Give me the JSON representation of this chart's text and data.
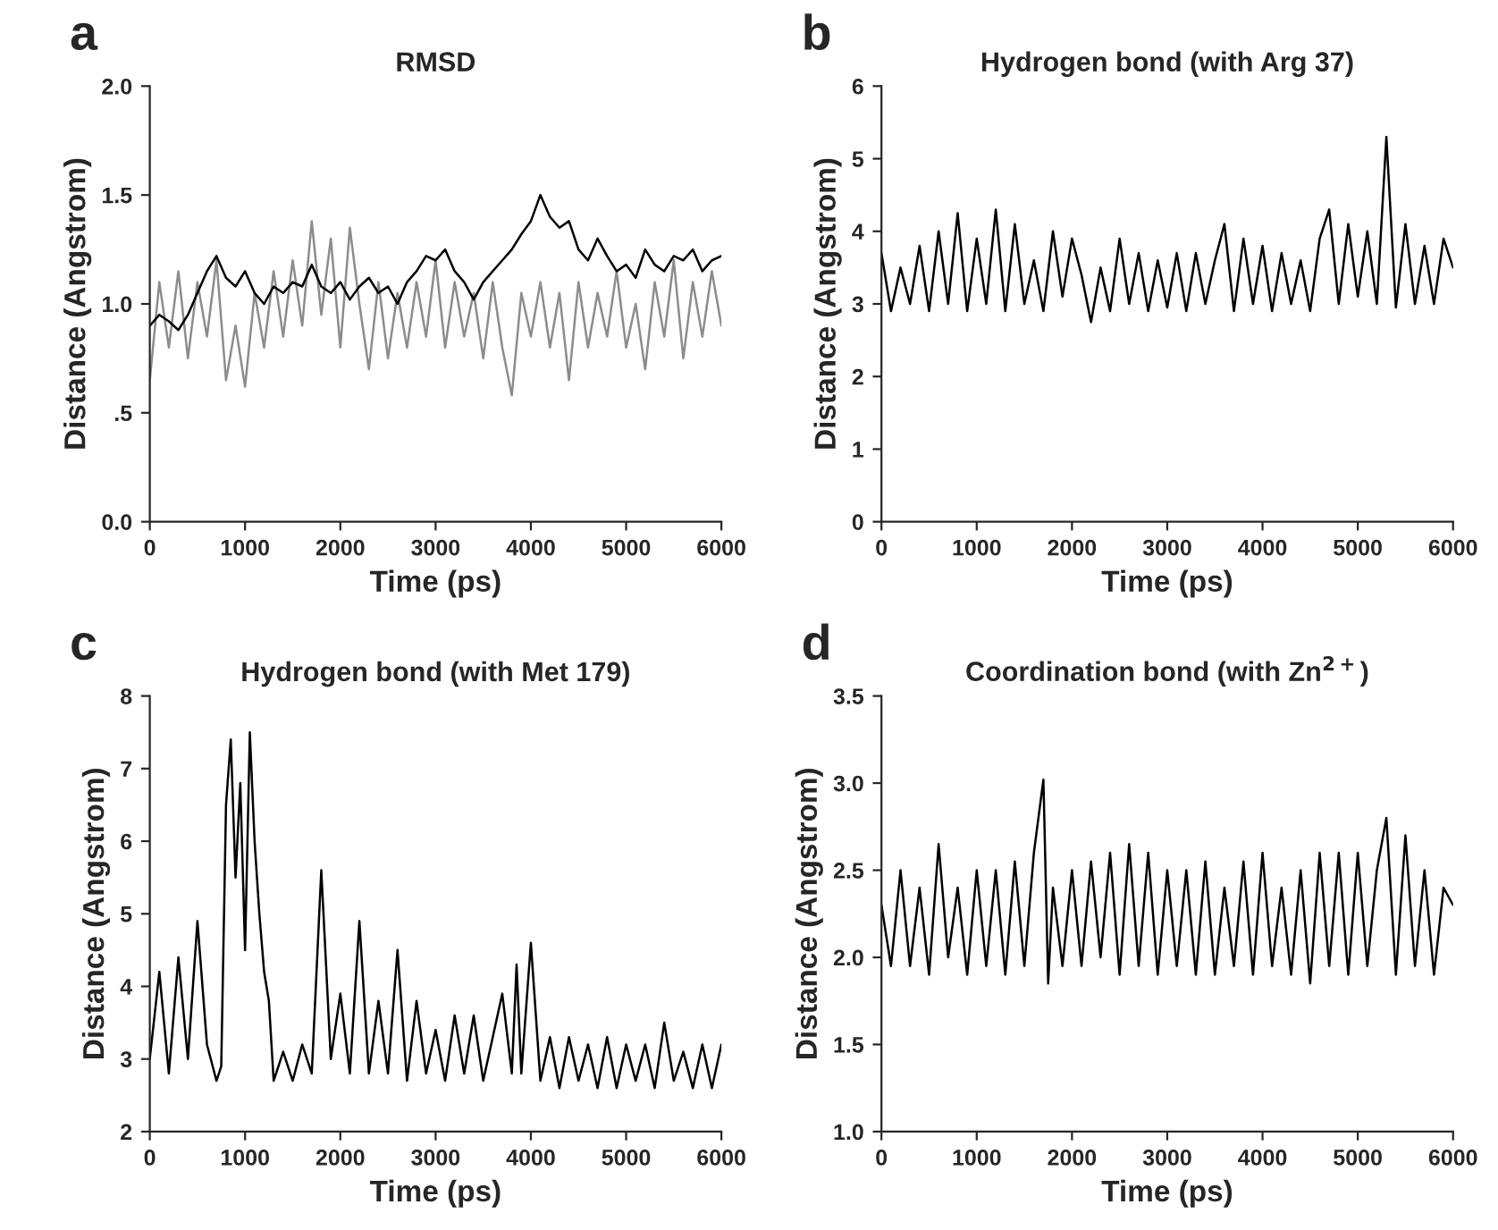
{
  "chart_data": [
    {
      "type": "line",
      "title": "RMSD",
      "xlabel": "Time (ps)",
      "ylabel": "Distance (Angstrom)",
      "annotations": [
        "a"
      ],
      "xlim": [
        0,
        6000
      ],
      "xticks": [
        0,
        1000,
        2000,
        3000,
        4000,
        5000,
        6000
      ],
      "ylim": [
        0,
        2
      ],
      "yticks": [
        {
          "value": 0,
          "label": "0.0"
        },
        {
          "value": 0.5,
          "label": ".5"
        },
        {
          "value": 1,
          "label": "1.0"
        },
        {
          "value": 1.5,
          "label": "1.5"
        },
        {
          "value": 2,
          "label": "2.0"
        }
      ],
      "grid": false,
      "legend": false,
      "x": [
        0,
        100,
        200,
        300,
        400,
        500,
        600,
        700,
        800,
        900,
        1000,
        1100,
        1200,
        1300,
        1400,
        1500,
        1600,
        1700,
        1800,
        1900,
        2000,
        2100,
        2200,
        2300,
        2400,
        2500,
        2600,
        2700,
        2800,
        2900,
        3000,
        3100,
        3200,
        3300,
        3400,
        3500,
        3600,
        3700,
        3800,
        3900,
        4000,
        4100,
        4200,
        4300,
        4400,
        4500,
        4600,
        4700,
        4800,
        4900,
        5000,
        5100,
        5200,
        5300,
        5400,
        5500,
        5600,
        5700,
        5800,
        5900,
        6000
      ],
      "series": [
        {
          "color": "#8c8c8c",
          "values": [
            0.65,
            1.1,
            0.8,
            1.15,
            0.75,
            1.1,
            0.85,
            1.2,
            0.65,
            0.9,
            0.62,
            1.05,
            0.8,
            1.15,
            0.85,
            1.2,
            0.9,
            1.38,
            0.95,
            1.3,
            0.8,
            1.35,
            1.0,
            0.7,
            1.1,
            0.75,
            1.05,
            0.8,
            1.1,
            0.85,
            1.2,
            0.8,
            1.1,
            0.85,
            1.05,
            0.75,
            1.1,
            0.8,
            0.58,
            1.05,
            0.85,
            1.1,
            0.8,
            1.05,
            0.65,
            1.1,
            0.8,
            1.05,
            0.85,
            1.15,
            0.8,
            1.0,
            0.7,
            1.1,
            0.85,
            1.2,
            0.75,
            1.1,
            0.85,
            1.15,
            0.9
          ]
        },
        {
          "color": "#000000",
          "values": [
            0.9,
            0.95,
            0.92,
            0.88,
            0.95,
            1.05,
            1.15,
            1.22,
            1.12,
            1.08,
            1.15,
            1.05,
            1.0,
            1.08,
            1.05,
            1.1,
            1.08,
            1.18,
            1.08,
            1.05,
            1.1,
            1.02,
            1.08,
            1.12,
            1.05,
            1.08,
            1.0,
            1.1,
            1.15,
            1.22,
            1.2,
            1.25,
            1.15,
            1.1,
            1.02,
            1.1,
            1.15,
            1.2,
            1.25,
            1.32,
            1.38,
            1.5,
            1.4,
            1.35,
            1.38,
            1.25,
            1.2,
            1.3,
            1.22,
            1.15,
            1.18,
            1.12,
            1.25,
            1.18,
            1.15,
            1.22,
            1.2,
            1.25,
            1.15,
            1.2,
            1.22
          ]
        }
      ]
    },
    {
      "type": "line",
      "title": "Hydrogen bond (with Arg 37)",
      "xlabel": "Time (ps)",
      "ylabel": "Distance (Angstrom)",
      "annotations": [
        "b"
      ],
      "xlim": [
        0,
        6000
      ],
      "xticks": [
        0,
        1000,
        2000,
        3000,
        4000,
        5000,
        6000
      ],
      "ylim": [
        0,
        6
      ],
      "yticks": [
        0,
        1,
        2,
        3,
        4,
        5,
        6
      ],
      "grid": false,
      "legend": false,
      "x": [
        0,
        100,
        200,
        300,
        400,
        500,
        600,
        700,
        800,
        900,
        1000,
        1100,
        1200,
        1300,
        1400,
        1500,
        1600,
        1700,
        1800,
        1900,
        2000,
        2100,
        2200,
        2300,
        2400,
        2500,
        2600,
        2700,
        2800,
        2900,
        3000,
        3100,
        3200,
        3300,
        3400,
        3500,
        3600,
        3700,
        3800,
        3900,
        4000,
        4100,
        4200,
        4300,
        4400,
        4500,
        4600,
        4700,
        4800,
        4900,
        5000,
        5100,
        5200,
        5300,
        5400,
        5500,
        5600,
        5700,
        5800,
        5900,
        6000
      ],
      "series": [
        {
          "color": "#000000",
          "values": [
            3.7,
            2.9,
            3.5,
            3.0,
            3.8,
            2.9,
            4.0,
            3.0,
            4.25,
            2.9,
            3.9,
            3.0,
            4.3,
            2.9,
            4.1,
            3.0,
            3.6,
            2.9,
            4.0,
            3.1,
            3.9,
            3.4,
            2.75,
            3.5,
            2.9,
            3.9,
            3.0,
            3.7,
            2.9,
            3.6,
            2.95,
            3.7,
            2.9,
            3.7,
            3.0,
            3.6,
            4.1,
            2.9,
            3.9,
            3.0,
            3.8,
            2.9,
            3.7,
            3.0,
            3.6,
            2.9,
            3.9,
            4.3,
            3.0,
            4.1,
            3.1,
            4.0,
            3.0,
            5.3,
            2.95,
            4.1,
            3.0,
            3.8,
            3.0,
            3.9,
            3.5
          ]
        }
      ]
    },
    {
      "type": "line",
      "title": "Hydrogen bond (with Met 179)",
      "xlabel": "Time (ps)",
      "ylabel": "Distance (Angstrom)",
      "annotations": [
        "c"
      ],
      "xlim": [
        0,
        6000
      ],
      "xticks": [
        0,
        1000,
        2000,
        3000,
        4000,
        5000,
        6000
      ],
      "ylim": [
        2,
        8
      ],
      "yticks": [
        2,
        3,
        4,
        5,
        6,
        7,
        8
      ],
      "grid": false,
      "legend": false,
      "x": [
        0,
        100,
        200,
        300,
        400,
        500,
        600,
        700,
        750,
        800,
        850,
        900,
        950,
        1000,
        1050,
        1100,
        1150,
        1200,
        1250,
        1300,
        1400,
        1500,
        1600,
        1700,
        1800,
        1900,
        2000,
        2100,
        2200,
        2300,
        2400,
        2500,
        2600,
        2700,
        2800,
        2900,
        3000,
        3100,
        3200,
        3300,
        3400,
        3500,
        3600,
        3700,
        3800,
        3850,
        3900,
        4000,
        4100,
        4200,
        4300,
        4400,
        4500,
        4600,
        4700,
        4800,
        4900,
        5000,
        5100,
        5200,
        5300,
        5400,
        5500,
        5600,
        5700,
        5800,
        5900,
        6000
      ],
      "series": [
        {
          "color": "#000000",
          "values": [
            3.0,
            4.2,
            2.8,
            4.4,
            3.0,
            4.9,
            3.2,
            2.7,
            2.9,
            6.5,
            7.4,
            5.5,
            6.8,
            4.5,
            7.5,
            6.0,
            5.0,
            4.2,
            3.8,
            2.7,
            3.1,
            2.7,
            3.2,
            2.8,
            5.6,
            3.0,
            3.9,
            2.8,
            4.9,
            2.8,
            3.8,
            2.8,
            4.5,
            2.7,
            3.8,
            2.8,
            3.4,
            2.7,
            3.6,
            2.8,
            3.6,
            2.7,
            3.3,
            3.9,
            2.8,
            4.3,
            2.8,
            4.6,
            2.7,
            3.3,
            2.6,
            3.3,
            2.7,
            3.2,
            2.6,
            3.3,
            2.6,
            3.2,
            2.7,
            3.2,
            2.6,
            3.5,
            2.7,
            3.1,
            2.6,
            3.2,
            2.6,
            3.2
          ]
        }
      ]
    },
    {
      "type": "line",
      "title": "Coordination bond (with Zn$^{2+}$)",
      "xlabel": "Time (ps)",
      "ylabel": "Distance (Angstrom)",
      "annotations": [
        "d"
      ],
      "xlim": [
        0,
        6000
      ],
      "xticks": [
        0,
        1000,
        2000,
        3000,
        4000,
        5000,
        6000
      ],
      "ylim": [
        1,
        3.5
      ],
      "yticks": [
        {
          "value": 1,
          "label": "1.0"
        },
        {
          "value": 1.5,
          "label": "1.5"
        },
        {
          "value": 2,
          "label": "2.0"
        },
        {
          "value": 2.5,
          "label": "2.5"
        },
        {
          "value": 3,
          "label": "3.0"
        },
        {
          "value": 3.5,
          "label": "3.5"
        }
      ],
      "grid": false,
      "legend": false,
      "x": [
        0,
        100,
        200,
        300,
        400,
        500,
        600,
        700,
        800,
        900,
        1000,
        1100,
        1200,
        1300,
        1400,
        1500,
        1600,
        1700,
        1750,
        1800,
        1900,
        2000,
        2100,
        2200,
        2300,
        2400,
        2500,
        2600,
        2700,
        2800,
        2900,
        3000,
        3100,
        3200,
        3300,
        3400,
        3500,
        3600,
        3700,
        3800,
        3900,
        4000,
        4100,
        4200,
        4300,
        4400,
        4500,
        4600,
        4700,
        4800,
        4900,
        5000,
        5100,
        5200,
        5300,
        5400,
        5500,
        5600,
        5700,
        5800,
        5900,
        6000
      ],
      "series": [
        {
          "color": "#000000",
          "values": [
            2.3,
            1.95,
            2.5,
            1.95,
            2.4,
            1.9,
            2.65,
            2.0,
            2.4,
            1.9,
            2.5,
            1.95,
            2.5,
            1.9,
            2.55,
            1.95,
            2.6,
            3.02,
            1.85,
            2.4,
            1.95,
            2.5,
            1.95,
            2.55,
            2.0,
            2.6,
            1.9,
            2.65,
            1.95,
            2.6,
            1.9,
            2.5,
            1.95,
            2.5,
            1.9,
            2.55,
            1.9,
            2.4,
            1.95,
            2.55,
            1.9,
            2.6,
            1.95,
            2.4,
            1.9,
            2.5,
            1.85,
            2.6,
            1.95,
            2.6,
            1.9,
            2.6,
            1.95,
            2.5,
            2.8,
            1.9,
            2.7,
            1.95,
            2.5,
            1.9,
            2.4,
            2.3
          ]
        }
      ]
    }
  ]
}
